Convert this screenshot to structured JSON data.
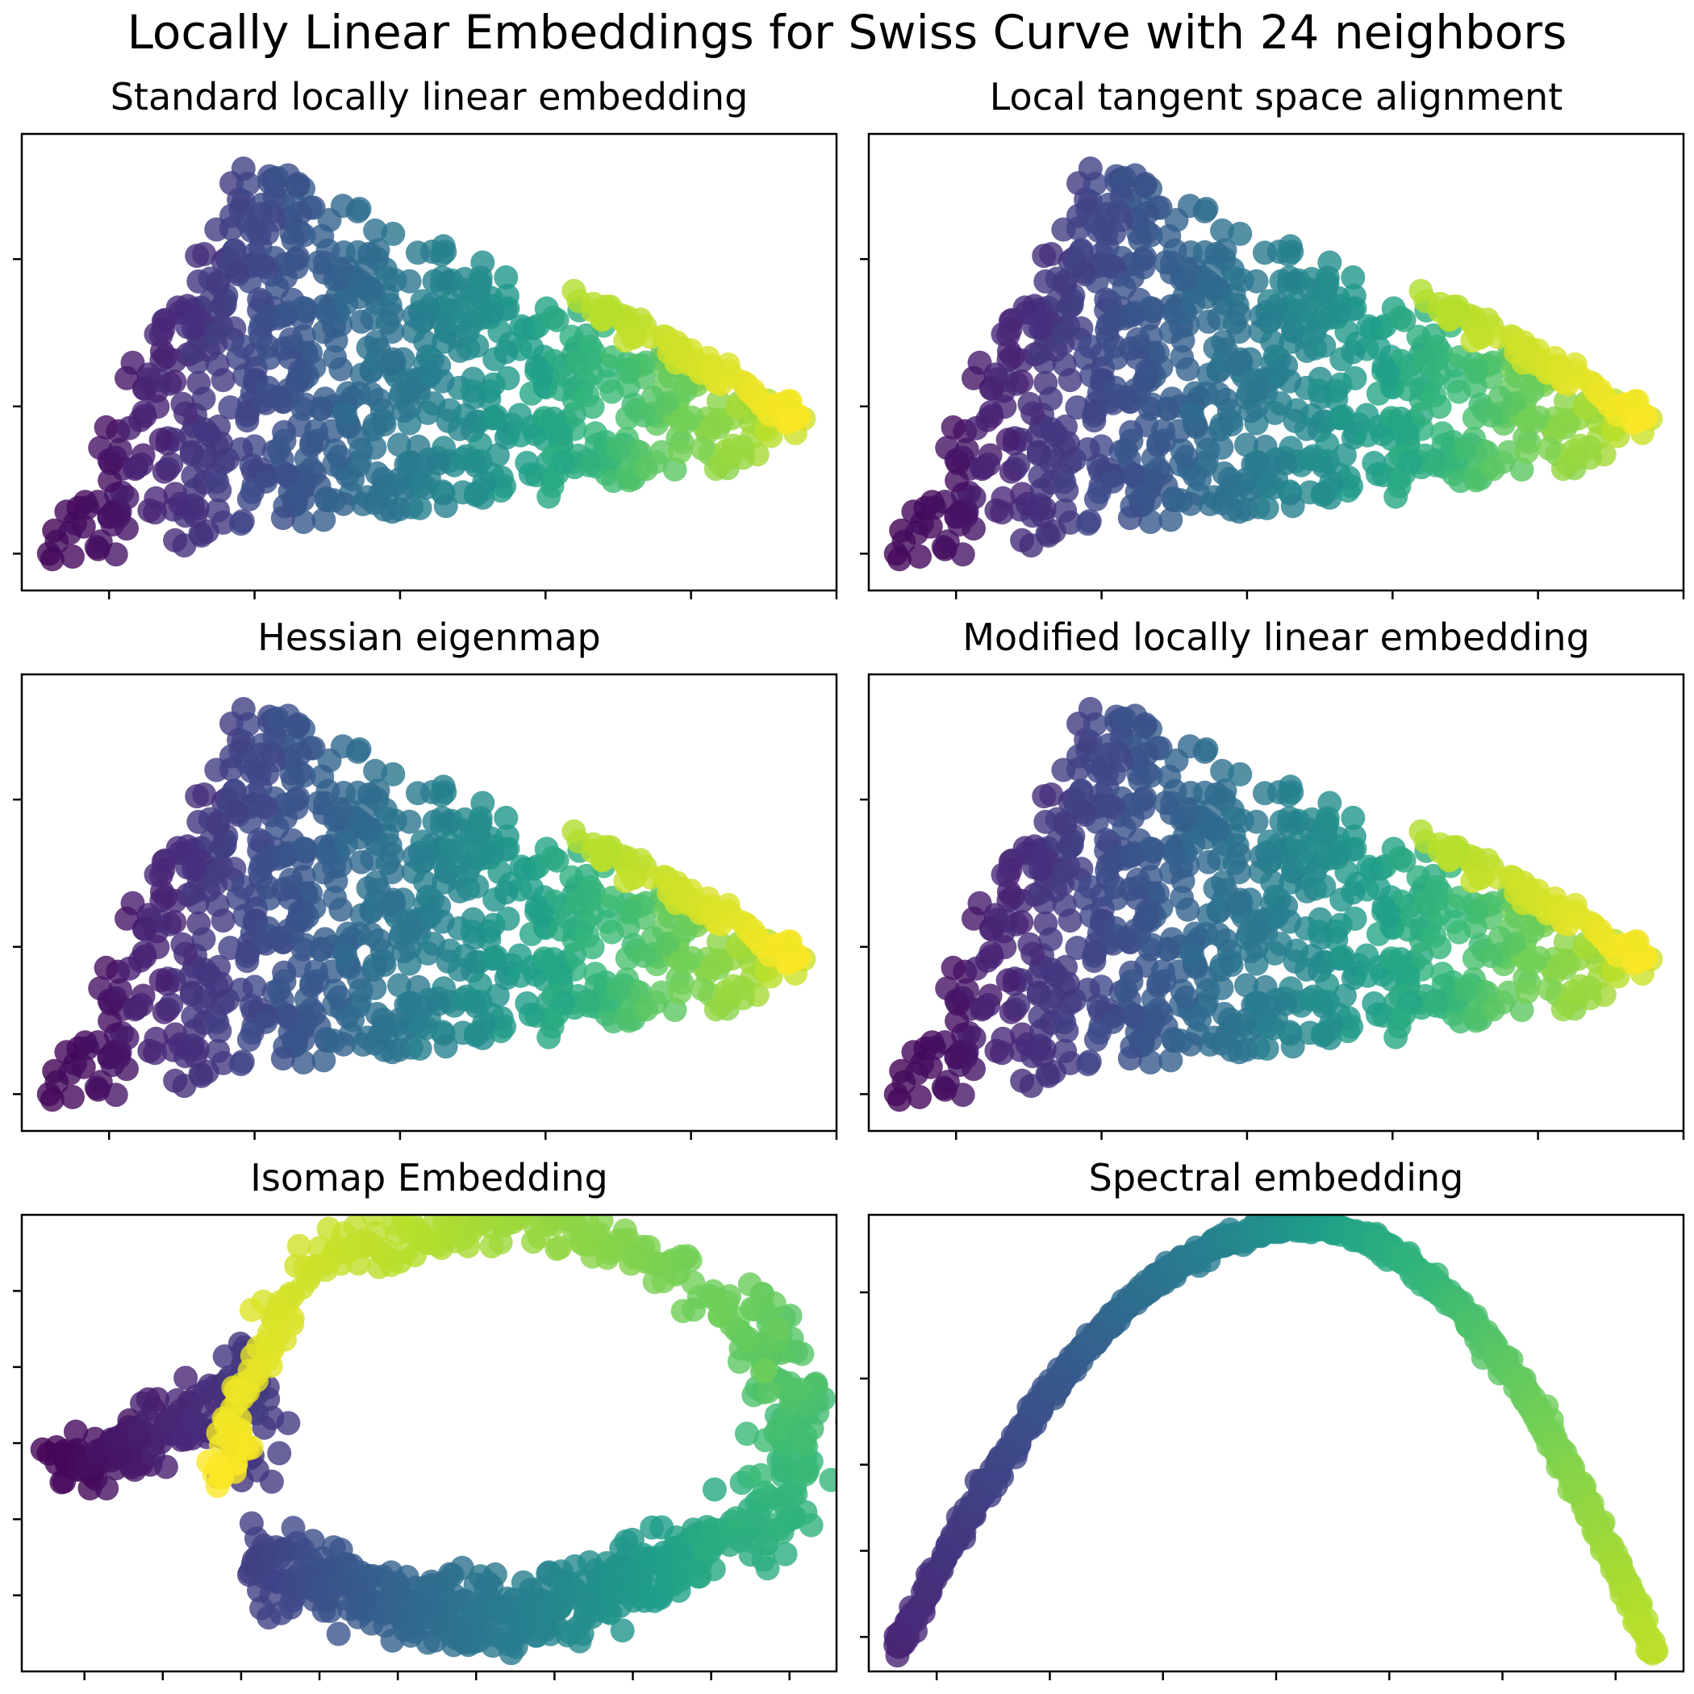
{
  "figure": {
    "title": "Locally Linear Embeddings for Swiss Curve with 24 neighbors"
  },
  "colormap": {
    "name": "viridis",
    "stops": [
      "#440154",
      "#482878",
      "#3e4989",
      "#31688e",
      "#26828e",
      "#1f9e89",
      "#35b779",
      "#6ece58",
      "#b5de2b",
      "#fde725"
    ]
  },
  "chart_data": [
    {
      "type": "scatter",
      "title": "Standard locally linear embedding",
      "shape": "triangle-cloud",
      "seed": 11,
      "xlim": [
        -1.15,
        1.65
      ],
      "ylim": [
        -1.25,
        1.85
      ],
      "xticks": [
        -0.85,
        -0.35,
        0.15,
        0.65,
        1.15,
        1.65
      ],
      "yticks": [
        -1.0,
        0.0,
        1.0
      ],
      "show_tick_labels": false,
      "grid": false,
      "apex": [
        -0.35,
        1.7
      ],
      "left": [
        -1.07,
        -1.05
      ],
      "right": [
        1.55,
        -0.1
      ],
      "bottom_right": [
        1.3,
        -0.4
      ],
      "color_by": "x"
    },
    {
      "type": "scatter",
      "title": "Local tangent space alignment",
      "shape": "triangle-cloud",
      "seed": 11,
      "xlim": [
        -1.15,
        1.65
      ],
      "ylim": [
        -1.25,
        1.85
      ],
      "xticks": [
        -0.85,
        -0.35,
        0.15,
        0.65,
        1.15,
        1.65
      ],
      "yticks": [
        -1.0,
        0.0,
        1.0
      ],
      "show_tick_labels": false,
      "grid": false,
      "apex": [
        -0.35,
        1.7
      ],
      "left": [
        -1.07,
        -1.05
      ],
      "right": [
        1.55,
        -0.1
      ],
      "bottom_right": [
        1.3,
        -0.4
      ],
      "color_by": "x"
    },
    {
      "type": "scatter",
      "title": "Hessian eigenmap",
      "shape": "triangle-cloud",
      "seed": 11,
      "xlim": [
        -1.15,
        1.65
      ],
      "ylim": [
        -1.25,
        1.85
      ],
      "xticks": [
        -0.85,
        -0.35,
        0.15,
        0.65,
        1.15,
        1.65
      ],
      "yticks": [
        -1.0,
        0.0,
        1.0
      ],
      "show_tick_labels": false,
      "grid": false,
      "apex": [
        -0.35,
        1.7
      ],
      "left": [
        -1.07,
        -1.05
      ],
      "right": [
        1.55,
        -0.1
      ],
      "bottom_right": [
        1.3,
        -0.4
      ],
      "color_by": "x"
    },
    {
      "type": "scatter",
      "title": "Modified locally linear embedding",
      "shape": "triangle-cloud",
      "seed": 11,
      "xlim": [
        -1.15,
        1.65
      ],
      "ylim": [
        -1.25,
        1.85
      ],
      "xticks": [
        -0.85,
        -0.35,
        0.15,
        0.65,
        1.15,
        1.65
      ],
      "yticks": [
        -1.0,
        0.0,
        1.0
      ],
      "show_tick_labels": false,
      "grid": false,
      "apex": [
        -0.35,
        1.7
      ],
      "left": [
        -1.07,
        -1.05
      ],
      "right": [
        1.55,
        -0.1
      ],
      "bottom_right": [
        1.3,
        -0.4
      ],
      "color_by": "x"
    },
    {
      "type": "scatter",
      "title": "Isomap Embedding",
      "shape": "isomap-loop",
      "seed": 5,
      "xlim": [
        -2.4,
        2.8
      ],
      "ylim": [
        -1.5,
        1.5
      ],
      "xticks": [
        -2.0,
        -1.5,
        -1.0,
        -0.5,
        0.0,
        0.5,
        1.0,
        1.5,
        2.0,
        2.5
      ],
      "yticks": [
        -1.0,
        -0.5,
        0.0,
        0.5,
        1.0
      ],
      "show_tick_labels": false,
      "grid": false
    },
    {
      "type": "scatter",
      "title": "Spectral embedding",
      "shape": "parabola",
      "seed": 3,
      "xlim": [
        -0.036,
        0.036
      ],
      "ylim": [
        -0.034,
        0.019
      ],
      "xticks": [
        -0.03,
        -0.02,
        -0.01,
        0.0,
        0.01,
        0.02,
        0.03
      ],
      "yticks": [
        -0.03,
        -0.02,
        -0.01,
        0.0,
        0.01
      ],
      "show_tick_labels": false,
      "grid": false,
      "vertex": [
        0.0025,
        0.0178
      ],
      "x_range": [
        -0.0335,
        0.0335
      ],
      "endpoints_y": [
        -0.0315,
        -0.032
      ]
    }
  ]
}
